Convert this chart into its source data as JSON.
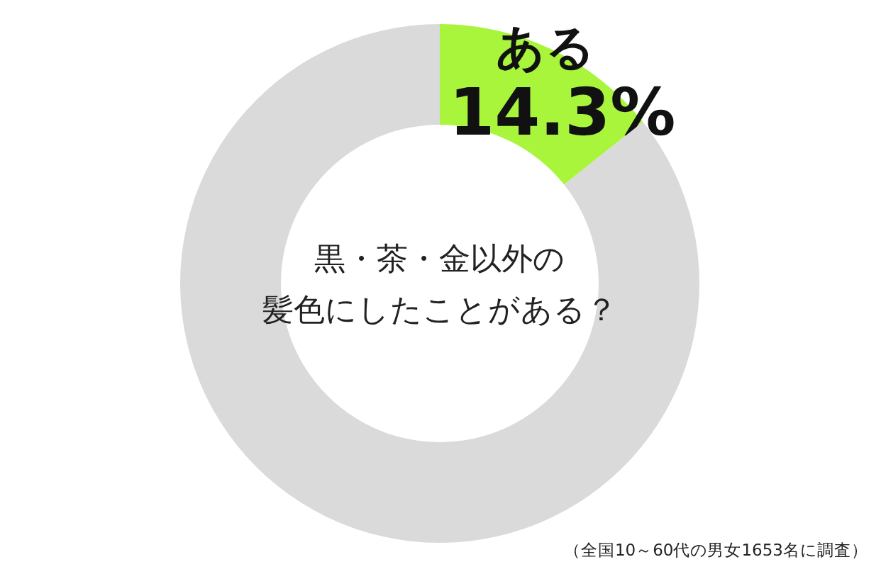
{
  "chart_data": {
    "type": "donut",
    "title": "黒・茶・金以外の",
    "subtitle": "髪色にしたことがある？",
    "categories": [
      "ある",
      null
    ],
    "values": [
      14.3,
      85.7
    ],
    "colors": [
      "#a8f53c",
      "#dadada"
    ],
    "value_labels": [
      "14.3%",
      null
    ],
    "annotations": [
      "（全国10～60代の男女1653名に調査）"
    ]
  }
}
